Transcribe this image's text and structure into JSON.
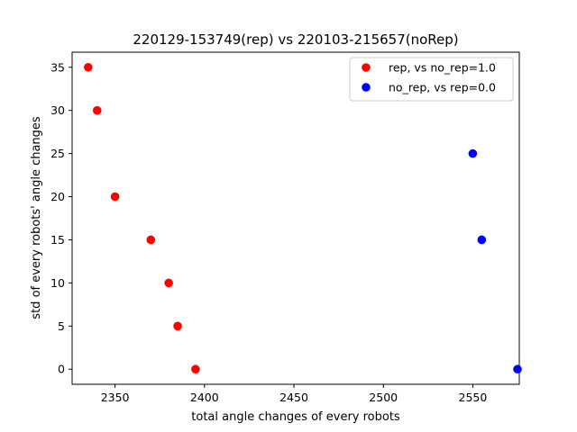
{
  "chart_data": {
    "type": "scatter",
    "title": "220129-153749(rep) vs 220103-215657(noRep)",
    "xlabel": "total angle changes of every robots",
    "ylabel": "std of every robots' angle changes",
    "xlim": [
      2326,
      2576
    ],
    "ylim": [
      -1.75,
      36.75
    ],
    "xticks": [
      2350,
      2400,
      2450,
      2500,
      2550
    ],
    "yticks": [
      0,
      5,
      10,
      15,
      20,
      25,
      30,
      35
    ],
    "grid": false,
    "legend_position": "top-right",
    "series": [
      {
        "name": "rep, vs no_rep=1.0",
        "color": "#ff0000",
        "points": [
          {
            "x": 2335,
            "y": 35
          },
          {
            "x": 2340,
            "y": 30
          },
          {
            "x": 2350,
            "y": 20
          },
          {
            "x": 2370,
            "y": 15
          },
          {
            "x": 2380,
            "y": 10
          },
          {
            "x": 2385,
            "y": 5
          },
          {
            "x": 2395,
            "y": 0
          }
        ]
      },
      {
        "name": "no_rep, vs rep=0.0",
        "color": "#0000ff",
        "points": [
          {
            "x": 2550,
            "y": 25
          },
          {
            "x": 2555,
            "y": 15
          },
          {
            "x": 2575,
            "y": 0
          }
        ]
      }
    ]
  }
}
